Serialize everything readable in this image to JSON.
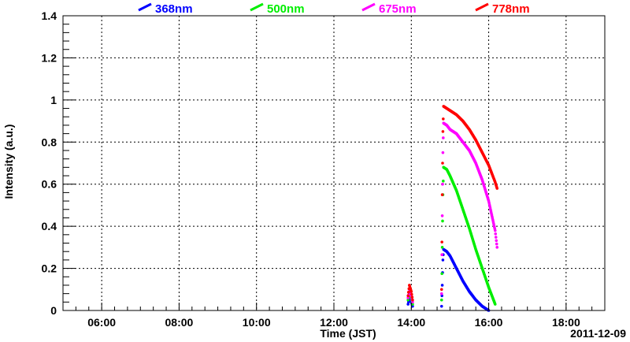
{
  "chart_data": {
    "type": "scatter",
    "title": "",
    "xlabel": "Time (JST)",
    "ylabel": "Intensity (a.u.)",
    "date_label": "2011-12-09",
    "xlim": [
      "05:00",
      "19:00"
    ],
    "ylim": [
      0,
      1.4
    ],
    "x_ticks": [
      "06:00",
      "08:00",
      "10:00",
      "12:00",
      "14:00",
      "16:00",
      "18:00"
    ],
    "y_ticks": [
      "0",
      "0.2",
      "0.4",
      "0.6",
      "0.8",
      "1",
      "1.2",
      "1.4"
    ],
    "grid": true,
    "legend_position": "top",
    "series": [
      {
        "name": "368nm",
        "color": "#0000ff",
        "points": [
          [
            "13:55",
            0.03
          ],
          [
            "13:57",
            0.06
          ],
          [
            "14:00",
            0.04
          ],
          [
            "14:02",
            0.02
          ],
          [
            "14:47",
            0.02
          ],
          [
            "14:48",
            0.12
          ],
          [
            "14:49",
            0.24
          ],
          [
            "14:50",
            0.29
          ],
          [
            "14:55",
            0.28
          ],
          [
            "15:00",
            0.26
          ],
          [
            "15:10",
            0.2
          ],
          [
            "15:20",
            0.14
          ],
          [
            "15:30",
            0.09
          ],
          [
            "15:40",
            0.05
          ],
          [
            "15:50",
            0.02
          ],
          [
            "16:00",
            0.0
          ]
        ]
      },
      {
        "name": "500nm",
        "color": "#00ee00",
        "points": [
          [
            "13:55",
            0.05
          ],
          [
            "13:57",
            0.08
          ],
          [
            "14:00",
            0.06
          ],
          [
            "14:02",
            0.03
          ],
          [
            "14:47",
            0.05
          ],
          [
            "14:48",
            0.3
          ],
          [
            "14:49",
            0.55
          ],
          [
            "14:50",
            0.68
          ],
          [
            "14:55",
            0.67
          ],
          [
            "15:00",
            0.64
          ],
          [
            "15:10",
            0.57
          ],
          [
            "15:20",
            0.48
          ],
          [
            "15:30",
            0.39
          ],
          [
            "15:40",
            0.29
          ],
          [
            "15:50",
            0.2
          ],
          [
            "16:00",
            0.11
          ],
          [
            "16:10",
            0.03
          ]
        ]
      },
      {
        "name": "675nm",
        "color": "#ff00ff",
        "points": [
          [
            "13:55",
            0.06
          ],
          [
            "13:57",
            0.1
          ],
          [
            "14:00",
            0.07
          ],
          [
            "14:02",
            0.04
          ],
          [
            "14:47",
            0.08
          ],
          [
            "14:48",
            0.45
          ],
          [
            "14:49",
            0.75
          ],
          [
            "14:50",
            0.89
          ],
          [
            "14:55",
            0.88
          ],
          [
            "15:00",
            0.86
          ],
          [
            "15:10",
            0.84
          ],
          [
            "15:20",
            0.8
          ],
          [
            "15:30",
            0.76
          ],
          [
            "15:40",
            0.7
          ],
          [
            "15:50",
            0.62
          ],
          [
            "16:00",
            0.52
          ],
          [
            "16:10",
            0.38
          ],
          [
            "16:13",
            0.3
          ]
        ]
      },
      {
        "name": "778nm",
        "color": "#ff0000",
        "points": [
          [
            "13:55",
            0.07
          ],
          [
            "13:57",
            0.12
          ],
          [
            "14:00",
            0.09
          ],
          [
            "14:02",
            0.05
          ],
          [
            "14:47",
            0.1
          ],
          [
            "14:48",
            0.55
          ],
          [
            "14:49",
            0.85
          ],
          [
            "14:50",
            0.97
          ],
          [
            "14:55",
            0.96
          ],
          [
            "15:00",
            0.95
          ],
          [
            "15:10",
            0.93
          ],
          [
            "15:20",
            0.9
          ],
          [
            "15:30",
            0.86
          ],
          [
            "15:40",
            0.81
          ],
          [
            "15:50",
            0.75
          ],
          [
            "16:00",
            0.69
          ],
          [
            "16:10",
            0.61
          ],
          [
            "16:13",
            0.58
          ]
        ]
      }
    ]
  }
}
